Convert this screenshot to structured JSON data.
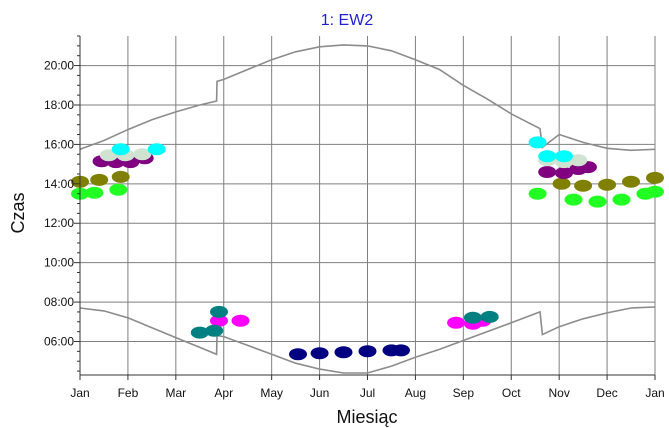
{
  "chart_data": {
    "type": "scatter",
    "title": "1: EW2",
    "xlabel": "Miesiąc",
    "ylabel": "Czas",
    "x_ticks": [
      "Jan",
      "Feb",
      "Mar",
      "Apr",
      "May",
      "Jun",
      "Jul",
      "Aug",
      "Sep",
      "Oct",
      "Nov",
      "Dec",
      "Jan"
    ],
    "y_ticks": [
      "06:00",
      "08:00",
      "10:00",
      "12:00",
      "14:00",
      "16:00",
      "18:00",
      "20:00"
    ],
    "xlim_months": [
      0,
      12
    ],
    "ylim_hours": [
      4.3,
      21.5
    ],
    "grid": true,
    "colors": {
      "background": "#ffffff",
      "grid": "#7f7f7f",
      "axis": "#333333",
      "boundary": "#8c8c8c",
      "title": "#1f1fd6"
    },
    "boundary_curves": {
      "sunset": [
        [
          0.0,
          15.75
        ],
        [
          0.5,
          16.2
        ],
        [
          1.0,
          16.75
        ],
        [
          1.5,
          17.25
        ],
        [
          2.0,
          17.65
        ],
        [
          2.5,
          18.0
        ],
        [
          2.85,
          18.2
        ],
        [
          2.86,
          19.2
        ],
        [
          3.0,
          19.3
        ],
        [
          3.5,
          19.8
        ],
        [
          4.0,
          20.3
        ],
        [
          4.5,
          20.7
        ],
        [
          5.0,
          20.95
        ],
        [
          5.5,
          21.05
        ],
        [
          6.0,
          21.0
        ],
        [
          6.5,
          20.75
        ],
        [
          7.0,
          20.3
        ],
        [
          7.5,
          19.8
        ],
        [
          8.0,
          19.0
        ],
        [
          8.5,
          18.3
        ],
        [
          9.0,
          17.55
        ],
        [
          9.6,
          16.8
        ],
        [
          9.65,
          15.85
        ],
        [
          10.0,
          16.5
        ],
        [
          10.5,
          16.1
        ],
        [
          11.0,
          15.8
        ],
        [
          11.5,
          15.7
        ],
        [
          12.0,
          15.75
        ]
      ],
      "sunrise": [
        [
          0.0,
          7.7
        ],
        [
          0.5,
          7.55
        ],
        [
          1.0,
          7.2
        ],
        [
          1.5,
          6.7
        ],
        [
          2.0,
          6.2
        ],
        [
          2.5,
          5.7
        ],
        [
          2.85,
          5.35
        ],
        [
          2.86,
          6.3
        ],
        [
          3.0,
          6.25
        ],
        [
          3.5,
          5.8
        ],
        [
          4.0,
          5.35
        ],
        [
          4.5,
          4.9
        ],
        [
          5.0,
          4.6
        ],
        [
          5.5,
          4.4
        ],
        [
          6.0,
          4.4
        ],
        [
          6.5,
          4.75
        ],
        [
          7.0,
          5.2
        ],
        [
          7.5,
          5.6
        ],
        [
          8.0,
          6.05
        ],
        [
          8.5,
          6.5
        ],
        [
          9.0,
          6.95
        ],
        [
          9.6,
          7.5
        ],
        [
          9.65,
          6.35
        ],
        [
          10.0,
          6.75
        ],
        [
          10.5,
          7.15
        ],
        [
          11.0,
          7.45
        ],
        [
          11.5,
          7.7
        ],
        [
          12.0,
          7.75
        ]
      ]
    },
    "series": [
      {
        "color": "#22ff22",
        "points": [
          [
            0.0,
            13.5
          ],
          [
            0.3,
            13.55
          ],
          [
            0.8,
            13.7
          ],
          [
            9.55,
            13.5
          ],
          [
            10.3,
            13.2
          ],
          [
            10.8,
            13.1
          ],
          [
            11.3,
            13.2
          ],
          [
            11.8,
            13.5
          ],
          [
            12.0,
            13.6
          ]
        ]
      },
      {
        "color": "#808000",
        "points": [
          [
            0.0,
            14.1
          ],
          [
            0.4,
            14.2
          ],
          [
            0.85,
            14.35
          ],
          [
            10.05,
            14.0
          ],
          [
            10.5,
            13.9
          ],
          [
            11.0,
            13.95
          ],
          [
            11.5,
            14.1
          ],
          [
            12.0,
            14.3
          ]
        ]
      },
      {
        "color": "#800080",
        "points": [
          [
            0.45,
            15.15
          ],
          [
            0.75,
            15.1
          ],
          [
            1.05,
            15.1
          ],
          [
            1.35,
            15.3
          ],
          [
            9.75,
            14.6
          ],
          [
            10.1,
            14.55
          ],
          [
            10.4,
            14.75
          ],
          [
            10.6,
            14.85
          ]
        ]
      },
      {
        "color": "#cfe3d0",
        "points": [
          [
            0.6,
            15.45
          ],
          [
            0.95,
            15.45
          ],
          [
            1.3,
            15.5
          ],
          [
            9.75,
            15.2
          ],
          [
            10.1,
            15.1
          ],
          [
            10.4,
            15.2
          ]
        ]
      },
      {
        "color": "#00ffff",
        "points": [
          [
            0.85,
            15.75
          ],
          [
            1.6,
            15.75
          ],
          [
            9.55,
            16.1
          ],
          [
            9.75,
            15.4
          ],
          [
            10.1,
            15.4
          ]
        ]
      },
      {
        "color": "#ff00ff",
        "points": [
          [
            2.9,
            7.05
          ],
          [
            3.35,
            7.05
          ],
          [
            7.85,
            6.95
          ],
          [
            8.2,
            6.9
          ],
          [
            8.4,
            7.05
          ]
        ]
      },
      {
        "color": "#008080",
        "points": [
          [
            2.5,
            6.45
          ],
          [
            2.8,
            6.55
          ],
          [
            2.9,
            7.5
          ],
          [
            8.2,
            7.2
          ],
          [
            8.55,
            7.25
          ]
        ]
      },
      {
        "color": "#000080",
        "points": [
          [
            4.55,
            5.35
          ],
          [
            5.0,
            5.4
          ],
          [
            5.5,
            5.45
          ],
          [
            6.0,
            5.5
          ],
          [
            6.5,
            5.55
          ],
          [
            6.7,
            5.55
          ]
        ]
      }
    ]
  }
}
